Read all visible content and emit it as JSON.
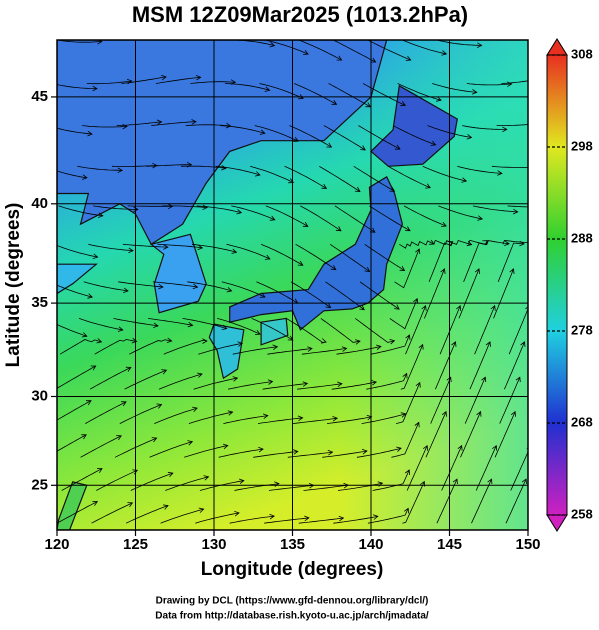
{
  "chart_data": {
    "type": "map",
    "title": "MSM 12Z09Mar2025 (1013.2hPa)",
    "xlabel": "Longitude (degrees)",
    "ylabel": "Latitude  (degrees)",
    "xlim": [
      120,
      150
    ],
    "ylim": [
      22.4,
      47.5
    ],
    "y_scale": "mercator",
    "xticks": [
      120,
      125,
      130,
      135,
      140,
      145,
      150
    ],
    "yticks": [
      25,
      30,
      35,
      40,
      45
    ],
    "grid": true,
    "colorbar": {
      "lim": [
        258,
        308
      ],
      "ticks": [
        258,
        268,
        278,
        288,
        298,
        308
      ],
      "colors": [
        "#d020c0",
        "#2030d0",
        "#20d0e0",
        "#30d030",
        "#e0e820",
        "#e83020"
      ]
    },
    "footer": [
      "Drawing by DCL (https://www.gfd-dennou.org/library/dcl/)",
      "Data from http://database.rish.kyoto-u.ac.jp/arch/jmadata/"
    ]
  }
}
